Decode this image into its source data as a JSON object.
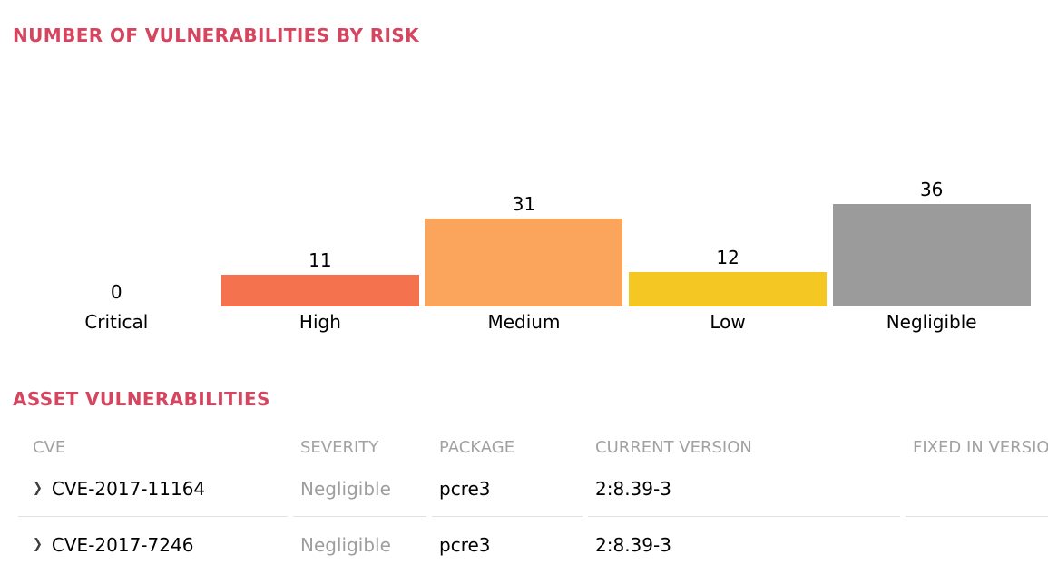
{
  "chart_section": {
    "title": "NUMBER OF VULNERABILITIES BY RISK"
  },
  "chart_data": {
    "type": "bar",
    "title": "NUMBER OF VULNERABILITIES BY RISK",
    "categories": [
      "Critical",
      "High",
      "Medium",
      "Low",
      "Negligible"
    ],
    "values": [
      0,
      11,
      31,
      12,
      36
    ],
    "bar_colors": [
      "",
      "#f4724e",
      "#fba55c",
      "#f5c722",
      "#9b9b9b"
    ],
    "value_labels": [
      0,
      11,
      31,
      12,
      36
    ],
    "ylim": [
      0,
      36
    ],
    "grid": false,
    "legend": false,
    "xlabel": "",
    "ylabel": ""
  },
  "colors": {
    "section_title": "#d5455f",
    "high_bar": "#f4724e",
    "medium_bar": "#fba55c",
    "low_bar": "#f5c722",
    "negligible_bar": "#9b9b9b",
    "muted_text": "#9e9e9e"
  },
  "table": {
    "title": "ASSET VULNERABILITIES",
    "columns": [
      "CVE",
      "SEVERITY",
      "PACKAGE",
      "CURRENT VERSION",
      "FIXED IN VERSION"
    ],
    "rows": [
      {
        "cve": "CVE-2017-11164",
        "severity": "Negligible",
        "package": "pcre3",
        "current_version": "2:8.39-3",
        "fixed_in_version": "",
        "expand_icon": "chevron-right"
      },
      {
        "cve": "CVE-2017-7246",
        "severity": "Negligible",
        "package": "pcre3",
        "current_version": "2:8.39-3",
        "fixed_in_version": "",
        "expand_icon": "chevron-right"
      }
    ]
  }
}
